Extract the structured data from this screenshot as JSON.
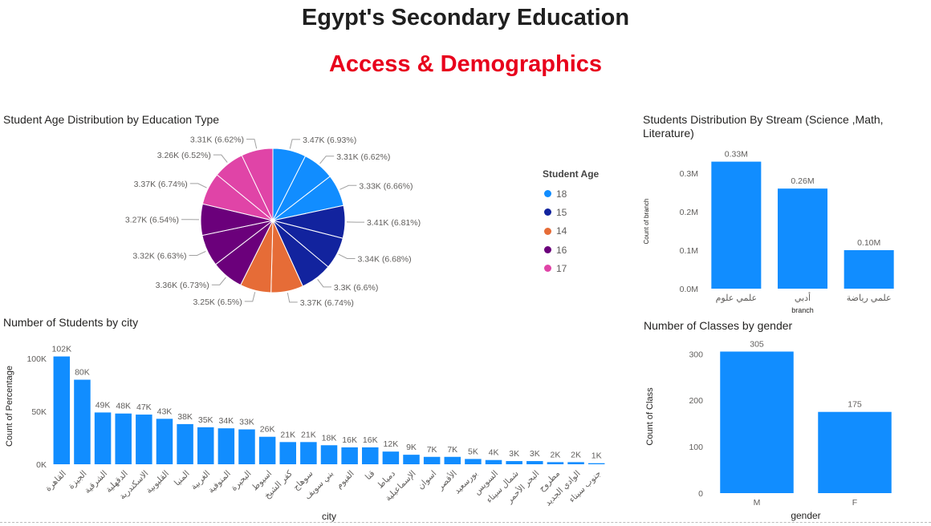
{
  "header": {
    "title": "Egypt's Secondary Education",
    "subtitle": "Access & Demographics"
  },
  "colors": {
    "bar": "#118dff",
    "title_accent": "#e8001c"
  },
  "chart_data": [
    {
      "id": "age",
      "type": "pie",
      "title": "Student Age Distribution by Education Type",
      "legend_title": "Student Age",
      "legend_position": "right",
      "legend": [
        {
          "label": "18",
          "color": "#118dff"
        },
        {
          "label": "15",
          "color": "#12239e"
        },
        {
          "label": "14",
          "color": "#e66c37"
        },
        {
          "label": "16",
          "color": "#6b007b"
        },
        {
          "label": "17",
          "color": "#e044a7"
        }
      ],
      "slices": [
        {
          "age": "18",
          "value": 3.47,
          "label": "3.47K (6.93%)",
          "color": "#118dff"
        },
        {
          "age": "18",
          "value": 3.31,
          "label": "3.31K (6.62%)",
          "color": "#118dff"
        },
        {
          "age": "18",
          "value": 3.33,
          "label": "3.33K (6.66%)",
          "color": "#118dff"
        },
        {
          "age": "15",
          "value": 3.41,
          "label": "3.41K (6.81%)",
          "color": "#12239e"
        },
        {
          "age": "15",
          "value": 3.34,
          "label": "3.34K (6.68%)",
          "color": "#12239e"
        },
        {
          "age": "15",
          "value": 3.3,
          "label": "3.3K (6.6%)",
          "color": "#12239e"
        },
        {
          "age": "14",
          "value": 3.37,
          "label": "3.37K (6.74%)",
          "color": "#e66c37"
        },
        {
          "age": "14",
          "value": 3.25,
          "label": "3.25K (6.5%)",
          "color": "#e66c37"
        },
        {
          "age": "16",
          "value": 3.36,
          "label": "3.36K (6.73%)",
          "color": "#6b007b"
        },
        {
          "age": "16",
          "value": 3.32,
          "label": "3.32K (6.63%)",
          "color": "#6b007b"
        },
        {
          "age": "16",
          "value": 3.27,
          "label": "3.27K (6.54%)",
          "color": "#6b007b"
        },
        {
          "age": "17",
          "value": 3.37,
          "label": "3.37K (6.74%)",
          "color": "#e044a7"
        },
        {
          "age": "17",
          "value": 3.26,
          "label": "3.26K (6.52%)",
          "color": "#e044a7"
        },
        {
          "age": "17",
          "value": 3.31,
          "label": "3.31K (6.62%)",
          "color": "#e044a7"
        }
      ]
    },
    {
      "id": "stream",
      "type": "bar",
      "title": "Students Distribution By Stream (Science ,Math, Literature)",
      "xlabel": "branch",
      "ylabel": "Count of branch",
      "ylim": [
        0,
        0.35
      ],
      "yticks": [
        0,
        0.1,
        0.2,
        0.3
      ],
      "ytick_labels": [
        "0.0M",
        "0.1M",
        "0.2M",
        "0.3M"
      ],
      "categories": [
        "علمي علوم",
        "أدبي",
        "علمي رياضة"
      ],
      "values": [
        0.33,
        0.26,
        0.1
      ],
      "data_labels": [
        "0.33M",
        "0.26M",
        "0.10M"
      ],
      "grid": false
    },
    {
      "id": "city",
      "type": "bar",
      "title": "Number of Students by city",
      "xlabel": "city",
      "ylabel": "Count of Percentage",
      "ylim": [
        0,
        110
      ],
      "yticks": [
        0,
        50,
        100
      ],
      "ytick_labels": [
        "0K",
        "50K",
        "100K"
      ],
      "categories": [
        "القاهرة",
        "الجيزة",
        "الشرقية",
        "الدقهلية",
        "الاسكندرية",
        "القليوبية",
        "المنيا",
        "الغربية",
        "المنوفية",
        "البحيرة",
        "اسيوط",
        "كفر الشيخ",
        "سوهاج",
        "بني سويف",
        "الفيوم",
        "قنا",
        "دمياط",
        "الإسماعيلية",
        "اسوان",
        "الأقصر",
        "بورسعيد",
        "السويس",
        "شمال سيناء",
        "البحر الأحمر",
        "مطروح",
        "الوادي الجديد",
        "جنوب سيناء"
      ],
      "values": [
        102,
        80,
        49,
        48,
        47,
        43,
        38,
        35,
        34,
        33,
        26,
        21,
        21,
        18,
        16,
        16,
        12,
        9,
        7,
        7,
        5,
        4,
        3,
        3,
        2,
        2,
        1
      ],
      "data_labels": [
        "102K",
        "80K",
        "49K",
        "48K",
        "47K",
        "43K",
        "38K",
        "35K",
        "34K",
        "33K",
        "26K",
        "21K",
        "21K",
        "18K",
        "16K",
        "16K",
        "12K",
        "9K",
        "7K",
        "7K",
        "5K",
        "4K",
        "3K",
        "3K",
        "2K",
        "2K",
        "1K"
      ],
      "grid": false
    },
    {
      "id": "gender",
      "type": "bar",
      "title": "Number of Classes by gender",
      "xlabel": "gender",
      "ylabel": "Count of Class",
      "ylim": [
        0,
        330
      ],
      "yticks": [
        0,
        100,
        200,
        300
      ],
      "ytick_labels": [
        "0",
        "100",
        "200",
        "300"
      ],
      "categories": [
        "M",
        "F"
      ],
      "values": [
        305,
        175
      ],
      "data_labels": [
        "305",
        "175"
      ],
      "grid": false
    }
  ]
}
